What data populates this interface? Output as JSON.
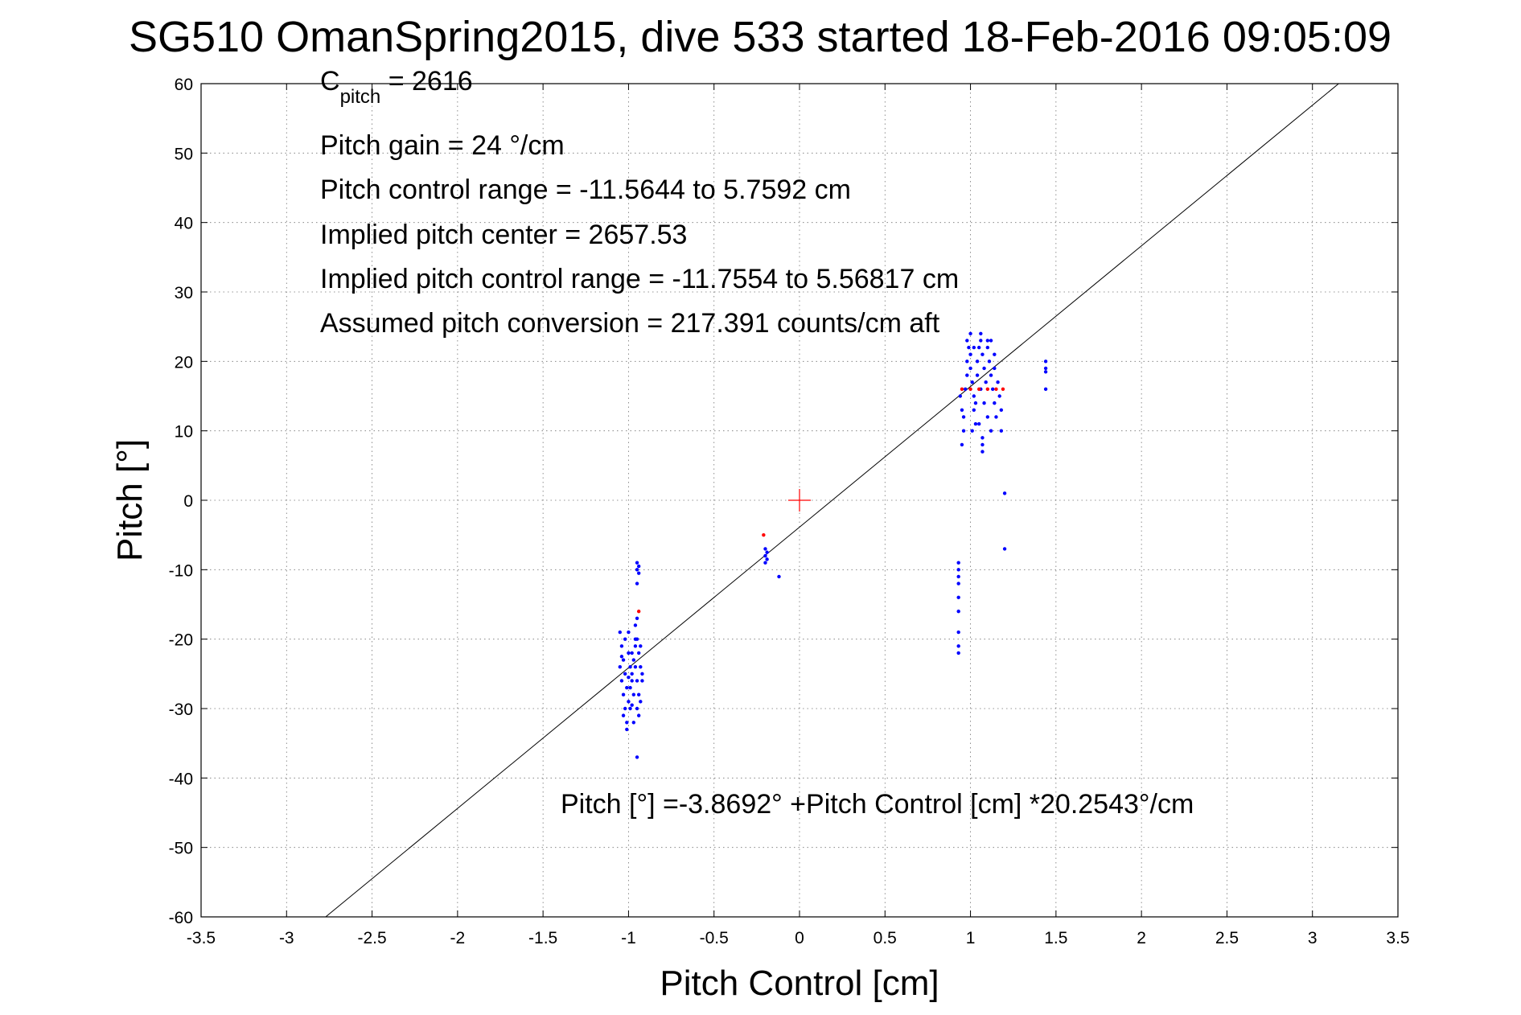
{
  "chart_data": {
    "type": "scatter",
    "title": "SG510 OmanSpring2015, dive 533 started 18-Feb-2016 09:05:09",
    "xlabel": "Pitch Control [cm]",
    "ylabel": "Pitch [°]",
    "xlim": [
      -3.5,
      3.5
    ],
    "ylim": [
      -60,
      60
    ],
    "xticks": [
      "-3.5",
      "-3",
      "-2.5",
      "-2",
      "-1.5",
      "-1",
      "-0.5",
      "0",
      "0.5",
      "1",
      "1.5",
      "2",
      "2.5",
      "3",
      "3.5"
    ],
    "yticks": [
      "60",
      "50",
      "40",
      "30",
      "20",
      "10",
      "0",
      "-10",
      "-20",
      "-30",
      "-40",
      "-50",
      "-60"
    ],
    "grid": true,
    "annotations": {
      "cpitch_main": "C",
      "cpitch_sub": "pitch",
      "cpitch_value": " = 2616",
      "pitch_gain": "Pitch gain = 24 °/cm",
      "control_range": "Pitch control range = -11.5644 to 5.7592 cm",
      "implied_center": "Implied pitch center = 2657.53",
      "implied_range": "Implied pitch control range = -11.7554 to 5.56817 cm",
      "conversion": "Assumed pitch conversion = 217.391 counts/cm aft",
      "fit_equation": "Pitch [°] =-3.8692° +Pitch Control [cm] *20.2543°/cm"
    },
    "fit_line": {
      "intercept": -3.8692,
      "slope": 20.2543,
      "color": "#000000"
    },
    "center_marker": {
      "x": 0,
      "y": 0,
      "color": "#ff0000"
    },
    "series": [
      {
        "color": "#0000ff",
        "points": [
          [
            -1.05,
            -19
          ],
          [
            -1.04,
            -21
          ],
          [
            -1.03,
            -23
          ],
          [
            -1.02,
            -25
          ],
          [
            -1.01,
            -27
          ],
          [
            -1.0,
            -22
          ],
          [
            -0.99,
            -24
          ],
          [
            -0.98,
            -26
          ],
          [
            -0.97,
            -28
          ],
          [
            -0.96,
            -21
          ],
          [
            -1.05,
            -24
          ],
          [
            -1.04,
            -26
          ],
          [
            -1.03,
            -28
          ],
          [
            -1.02,
            -30
          ],
          [
            -1.01,
            -32
          ],
          [
            -1.0,
            -29
          ],
          [
            -0.99,
            -27
          ],
          [
            -0.98,
            -25
          ],
          [
            -0.97,
            -23
          ],
          [
            -0.96,
            -20
          ],
          [
            -1.03,
            -31
          ],
          [
            -1.01,
            -33
          ],
          [
            -0.99,
            -30
          ],
          [
            -0.97,
            -32
          ],
          [
            -1.02,
            -20
          ],
          [
            -1.0,
            -19
          ],
          [
            -0.98,
            -22
          ],
          [
            -0.96,
            -24
          ],
          [
            -0.95,
            -26
          ],
          [
            -0.94,
            -28
          ],
          [
            -0.95,
            -20
          ],
          [
            -0.94,
            -22
          ],
          [
            -0.93,
            -24
          ],
          [
            -0.92,
            -26
          ],
          [
            -0.95,
            -30
          ],
          [
            -0.94,
            -31
          ],
          [
            -0.93,
            -29
          ],
          [
            -0.92,
            -25
          ],
          [
            -0.96,
            -18
          ],
          [
            -0.95,
            -17
          ],
          [
            -0.95,
            -9
          ],
          [
            -0.94,
            -9.5
          ],
          [
            -0.95,
            -10
          ],
          [
            -0.94,
            -10.5
          ],
          [
            -0.95,
            -12
          ],
          [
            -0.95,
            -37
          ],
          [
            -1.04,
            -22.5
          ],
          [
            -1.0,
            -25.5
          ],
          [
            -0.98,
            -29.5
          ],
          [
            -0.93,
            -21
          ],
          [
            -0.2,
            -7
          ],
          [
            -0.2,
            -8
          ],
          [
            -0.19,
            -8.5
          ],
          [
            -0.2,
            -9
          ],
          [
            -0.19,
            -7.5
          ],
          [
            -0.12,
            -11
          ],
          [
            0.94,
            15
          ],
          [
            0.95,
            13
          ],
          [
            0.96,
            12
          ],
          [
            0.96,
            10
          ],
          [
            0.97,
            16
          ],
          [
            0.98,
            18
          ],
          [
            0.98,
            20
          ],
          [
            0.99,
            22
          ],
          [
            1.0,
            21
          ],
          [
            1.0,
            19
          ],
          [
            1.01,
            17
          ],
          [
            1.02,
            15
          ],
          [
            1.02,
            13
          ],
          [
            1.03,
            11
          ],
          [
            1.04,
            20
          ],
          [
            1.05,
            22
          ],
          [
            1.06,
            23
          ],
          [
            1.07,
            21
          ],
          [
            1.08,
            19
          ],
          [
            1.09,
            17
          ],
          [
            1.1,
            23
          ],
          [
            1.1,
            22
          ],
          [
            1.11,
            20
          ],
          [
            1.12,
            18
          ],
          [
            1.13,
            16
          ],
          [
            1.14,
            14
          ],
          [
            1.15,
            12
          ],
          [
            1.16,
            17
          ],
          [
            1.17,
            15
          ],
          [
            1.18,
            13
          ],
          [
            0.98,
            23
          ],
          [
            1.0,
            24
          ],
          [
            1.02,
            22
          ],
          [
            1.04,
            18
          ],
          [
            1.06,
            16
          ],
          [
            1.08,
            14
          ],
          [
            1.1,
            12
          ],
          [
            1.12,
            10
          ],
          [
            1.14,
            21
          ],
          [
            1.03,
            14
          ],
          [
            1.07,
            7
          ],
          [
            1.07,
            8
          ],
          [
            1.07,
            9
          ],
          [
            1.12,
            23
          ],
          [
            1.14,
            19
          ],
          [
            1.18,
            10
          ],
          [
            0.95,
            8
          ],
          [
            1.06,
            24
          ],
          [
            1.01,
            10
          ],
          [
            1.05,
            11
          ],
          [
            0.93,
            -9
          ],
          [
            0.93,
            -10
          ],
          [
            0.93,
            -11
          ],
          [
            0.93,
            -12
          ],
          [
            0.93,
            -14
          ],
          [
            0.93,
            -16
          ],
          [
            0.93,
            -19
          ],
          [
            0.93,
            -21
          ],
          [
            0.93,
            -22
          ],
          [
            1.2,
            1
          ],
          [
            1.2,
            -7
          ],
          [
            1.44,
            20
          ],
          [
            1.44,
            19
          ],
          [
            1.44,
            18.5
          ],
          [
            1.44,
            16
          ]
        ]
      },
      {
        "color": "#ff0000",
        "points": [
          [
            -0.94,
            -16
          ],
          [
            -0.21,
            -5
          ],
          [
            0.95,
            16
          ],
          [
            1.0,
            16
          ],
          [
            1.05,
            16
          ],
          [
            1.1,
            16
          ],
          [
            1.15,
            16
          ],
          [
            1.19,
            16
          ]
        ]
      }
    ]
  }
}
